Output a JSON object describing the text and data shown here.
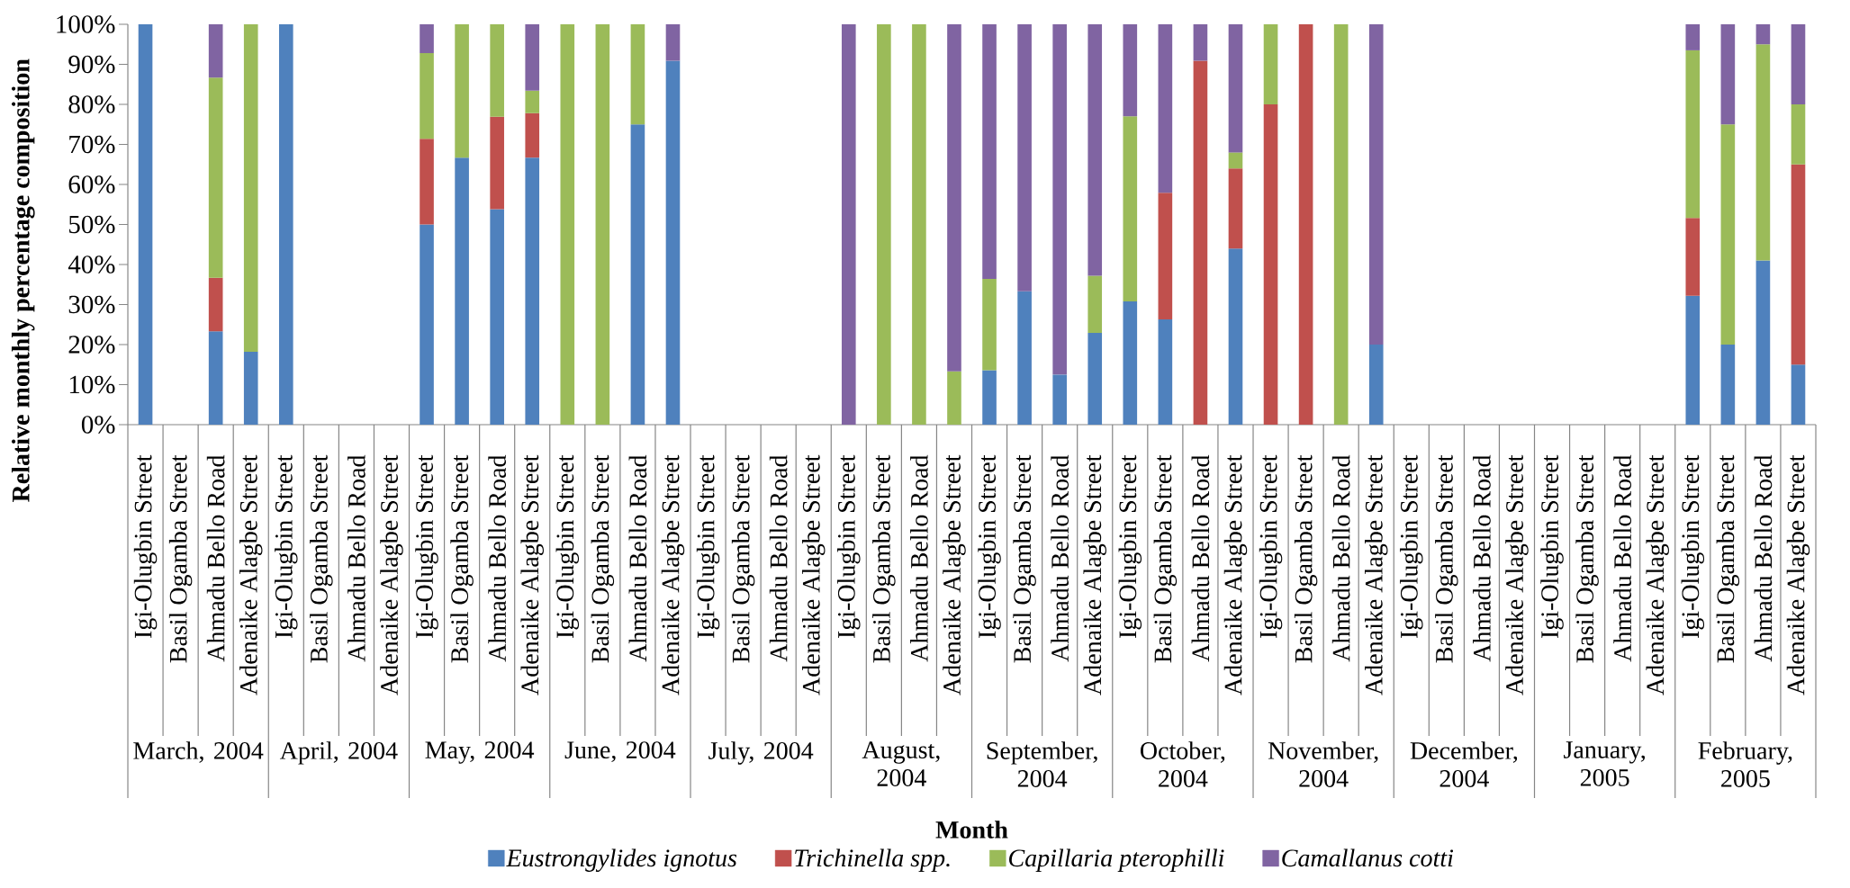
{
  "chart_data": {
    "type": "bar",
    "stacked": true,
    "ylabel": "Relative monthly percentage composition",
    "xlabel": "Month",
    "categories": [
      "Igi-Olugbin Street",
      "Basil Ogamba Street",
      "Ahmadu Bello Road",
      "Adenaike Alagbe Street",
      "Igi-Olugbin Street",
      "Basil Ogamba Street",
      "Ahmadu Bello Road",
      "Adenaike Alagbe Street",
      "Igi-Olugbin Street",
      "Basil Ogamba Street",
      "Ahmadu Bello Road",
      "Adenaike Alagbe Street",
      "Igi-Olugbin Street",
      "Basil Ogamba Street",
      "Ahmadu Bello Road",
      "Adenaike Alagbe Street",
      "Igi-Olugbin Street",
      "Basil Ogamba Street",
      "Ahmadu Bello Road",
      "Adenaike Alagbe Street",
      "Igi-Olugbin Street",
      "Basil Ogamba Street",
      "Ahmadu Bello Road",
      "Adenaike Alagbe Street",
      "Igi-Olugbin Street",
      "Basil Ogamba Street",
      "Ahmadu Bello Road",
      "Adenaike Alagbe Street",
      "Igi-Olugbin Street",
      "Basil Ogamba Street",
      "Ahmadu Bello Road",
      "Adenaike Alagbe Street",
      "Igi-Olugbin Street",
      "Basil Ogamba Street",
      "Ahmadu Bello Road",
      "Adenaike Alagbe Street",
      "Igi-Olugbin Street",
      "Basil Ogamba Street",
      "Ahmadu Bello Road",
      "Adenaike Alagbe Street",
      "Igi-Olugbin Street",
      "Basil Ogamba Street",
      "Ahmadu Bello Road",
      "Adenaike Alagbe Street",
      "Igi-Olugbin Street",
      "Basil Ogamba Street",
      "Ahmadu Bello Road",
      "Adenaike Alagbe Street"
    ],
    "annotations": [
      "March, 2004",
      "April, 2004",
      "May, 2004",
      "June, 2004",
      "July, 2004",
      "August, 2004",
      "September, 2004",
      "October, 2004",
      "November, 2004",
      "December, 2004",
      "January, 2005",
      "February, 2005"
    ],
    "series": [
      {
        "name": "Eustrongylides ignotus",
        "color": "#4f81bd",
        "values": [
          100,
          null,
          23.3,
          18.2,
          100,
          null,
          null,
          null,
          50,
          66.7,
          53.8,
          66.7,
          null,
          null,
          75,
          90.9,
          null,
          null,
          null,
          null,
          null,
          null,
          null,
          null,
          13.6,
          33.3,
          12.5,
          22.9,
          30.8,
          26.3,
          null,
          44,
          null,
          null,
          null,
          20,
          null,
          null,
          null,
          null,
          null,
          null,
          null,
          null,
          32.2,
          20,
          41,
          15
        ]
      },
      {
        "name": "Trichinella spp.",
        "color": "#c0504d",
        "values": [
          null,
          null,
          13.4,
          null,
          null,
          null,
          null,
          null,
          21.4,
          null,
          23.1,
          11.1,
          null,
          null,
          null,
          null,
          null,
          null,
          null,
          null,
          null,
          null,
          null,
          null,
          null,
          null,
          null,
          null,
          null,
          31.6,
          90.9,
          20,
          80,
          100,
          null,
          null,
          null,
          null,
          null,
          null,
          null,
          null,
          null,
          null,
          19.4,
          null,
          null,
          50
        ]
      },
      {
        "name": "Capillaria pterophilli",
        "color": "#9bbb59",
        "values": [
          null,
          null,
          50,
          81.8,
          null,
          null,
          null,
          null,
          21.4,
          33.3,
          23.1,
          5.6,
          100,
          100,
          25,
          null,
          null,
          null,
          null,
          null,
          null,
          100,
          100,
          13.3,
          22.8,
          null,
          null,
          14.3,
          46.2,
          null,
          null,
          4,
          20,
          null,
          100,
          null,
          null,
          null,
          null,
          null,
          null,
          null,
          null,
          null,
          41.9,
          55,
          54,
          15
        ]
      },
      {
        "name": "Camallanus cotti",
        "color": "#8064a2",
        "values": [
          null,
          null,
          13.3,
          null,
          null,
          null,
          null,
          null,
          7.2,
          null,
          null,
          16.6,
          null,
          null,
          null,
          9.1,
          null,
          null,
          null,
          null,
          100,
          null,
          null,
          86.7,
          63.6,
          66.7,
          87.5,
          62.8,
          23,
          42.1,
          9.1,
          32,
          null,
          null,
          null,
          80,
          null,
          null,
          null,
          null,
          null,
          null,
          null,
          null,
          6.5,
          25,
          5,
          20
        ]
      }
    ],
    "ylim": [
      0,
      100
    ],
    "yticks": [
      {
        "value": 0,
        "label": "0%"
      },
      {
        "value": 10,
        "label": "10%"
      },
      {
        "value": 20,
        "label": "20%"
      },
      {
        "value": 30,
        "label": "30%"
      },
      {
        "value": 40,
        "label": "40%"
      },
      {
        "value": 50,
        "label": "50%"
      },
      {
        "value": 60,
        "label": "60%"
      },
      {
        "value": 70,
        "label": "70%"
      },
      {
        "value": 80,
        "label": "80%"
      },
      {
        "value": 90,
        "label": "90%"
      },
      {
        "value": 100,
        "label": "100%"
      }
    ],
    "legend": "bottom"
  }
}
